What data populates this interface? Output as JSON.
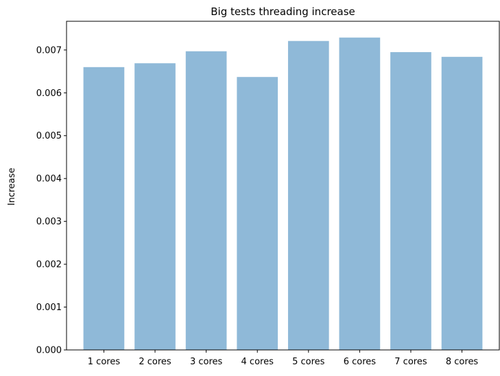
{
  "chart_data": {
    "type": "bar",
    "title": "Big tests threading increase",
    "xlabel": "",
    "ylabel": "Increase",
    "categories": [
      "1 cores",
      "2 cores",
      "3 cores",
      "4 cores",
      "5 cores",
      "6 cores",
      "7 cores",
      "8 cores"
    ],
    "values": [
      0.0066,
      0.00669,
      0.00697,
      0.00637,
      0.00721,
      0.00729,
      0.00695,
      0.00684
    ],
    "ylim": [
      0,
      0.00767
    ],
    "yticks": [
      0.0,
      0.001,
      0.002,
      0.003,
      0.004,
      0.005,
      0.006,
      0.007
    ],
    "ytick_labels": [
      "0.000",
      "0.001",
      "0.002",
      "0.003",
      "0.004",
      "0.005",
      "0.006",
      "0.007"
    ],
    "grid": false,
    "legend": null,
    "bar_color": "#8fb9d8"
  }
}
